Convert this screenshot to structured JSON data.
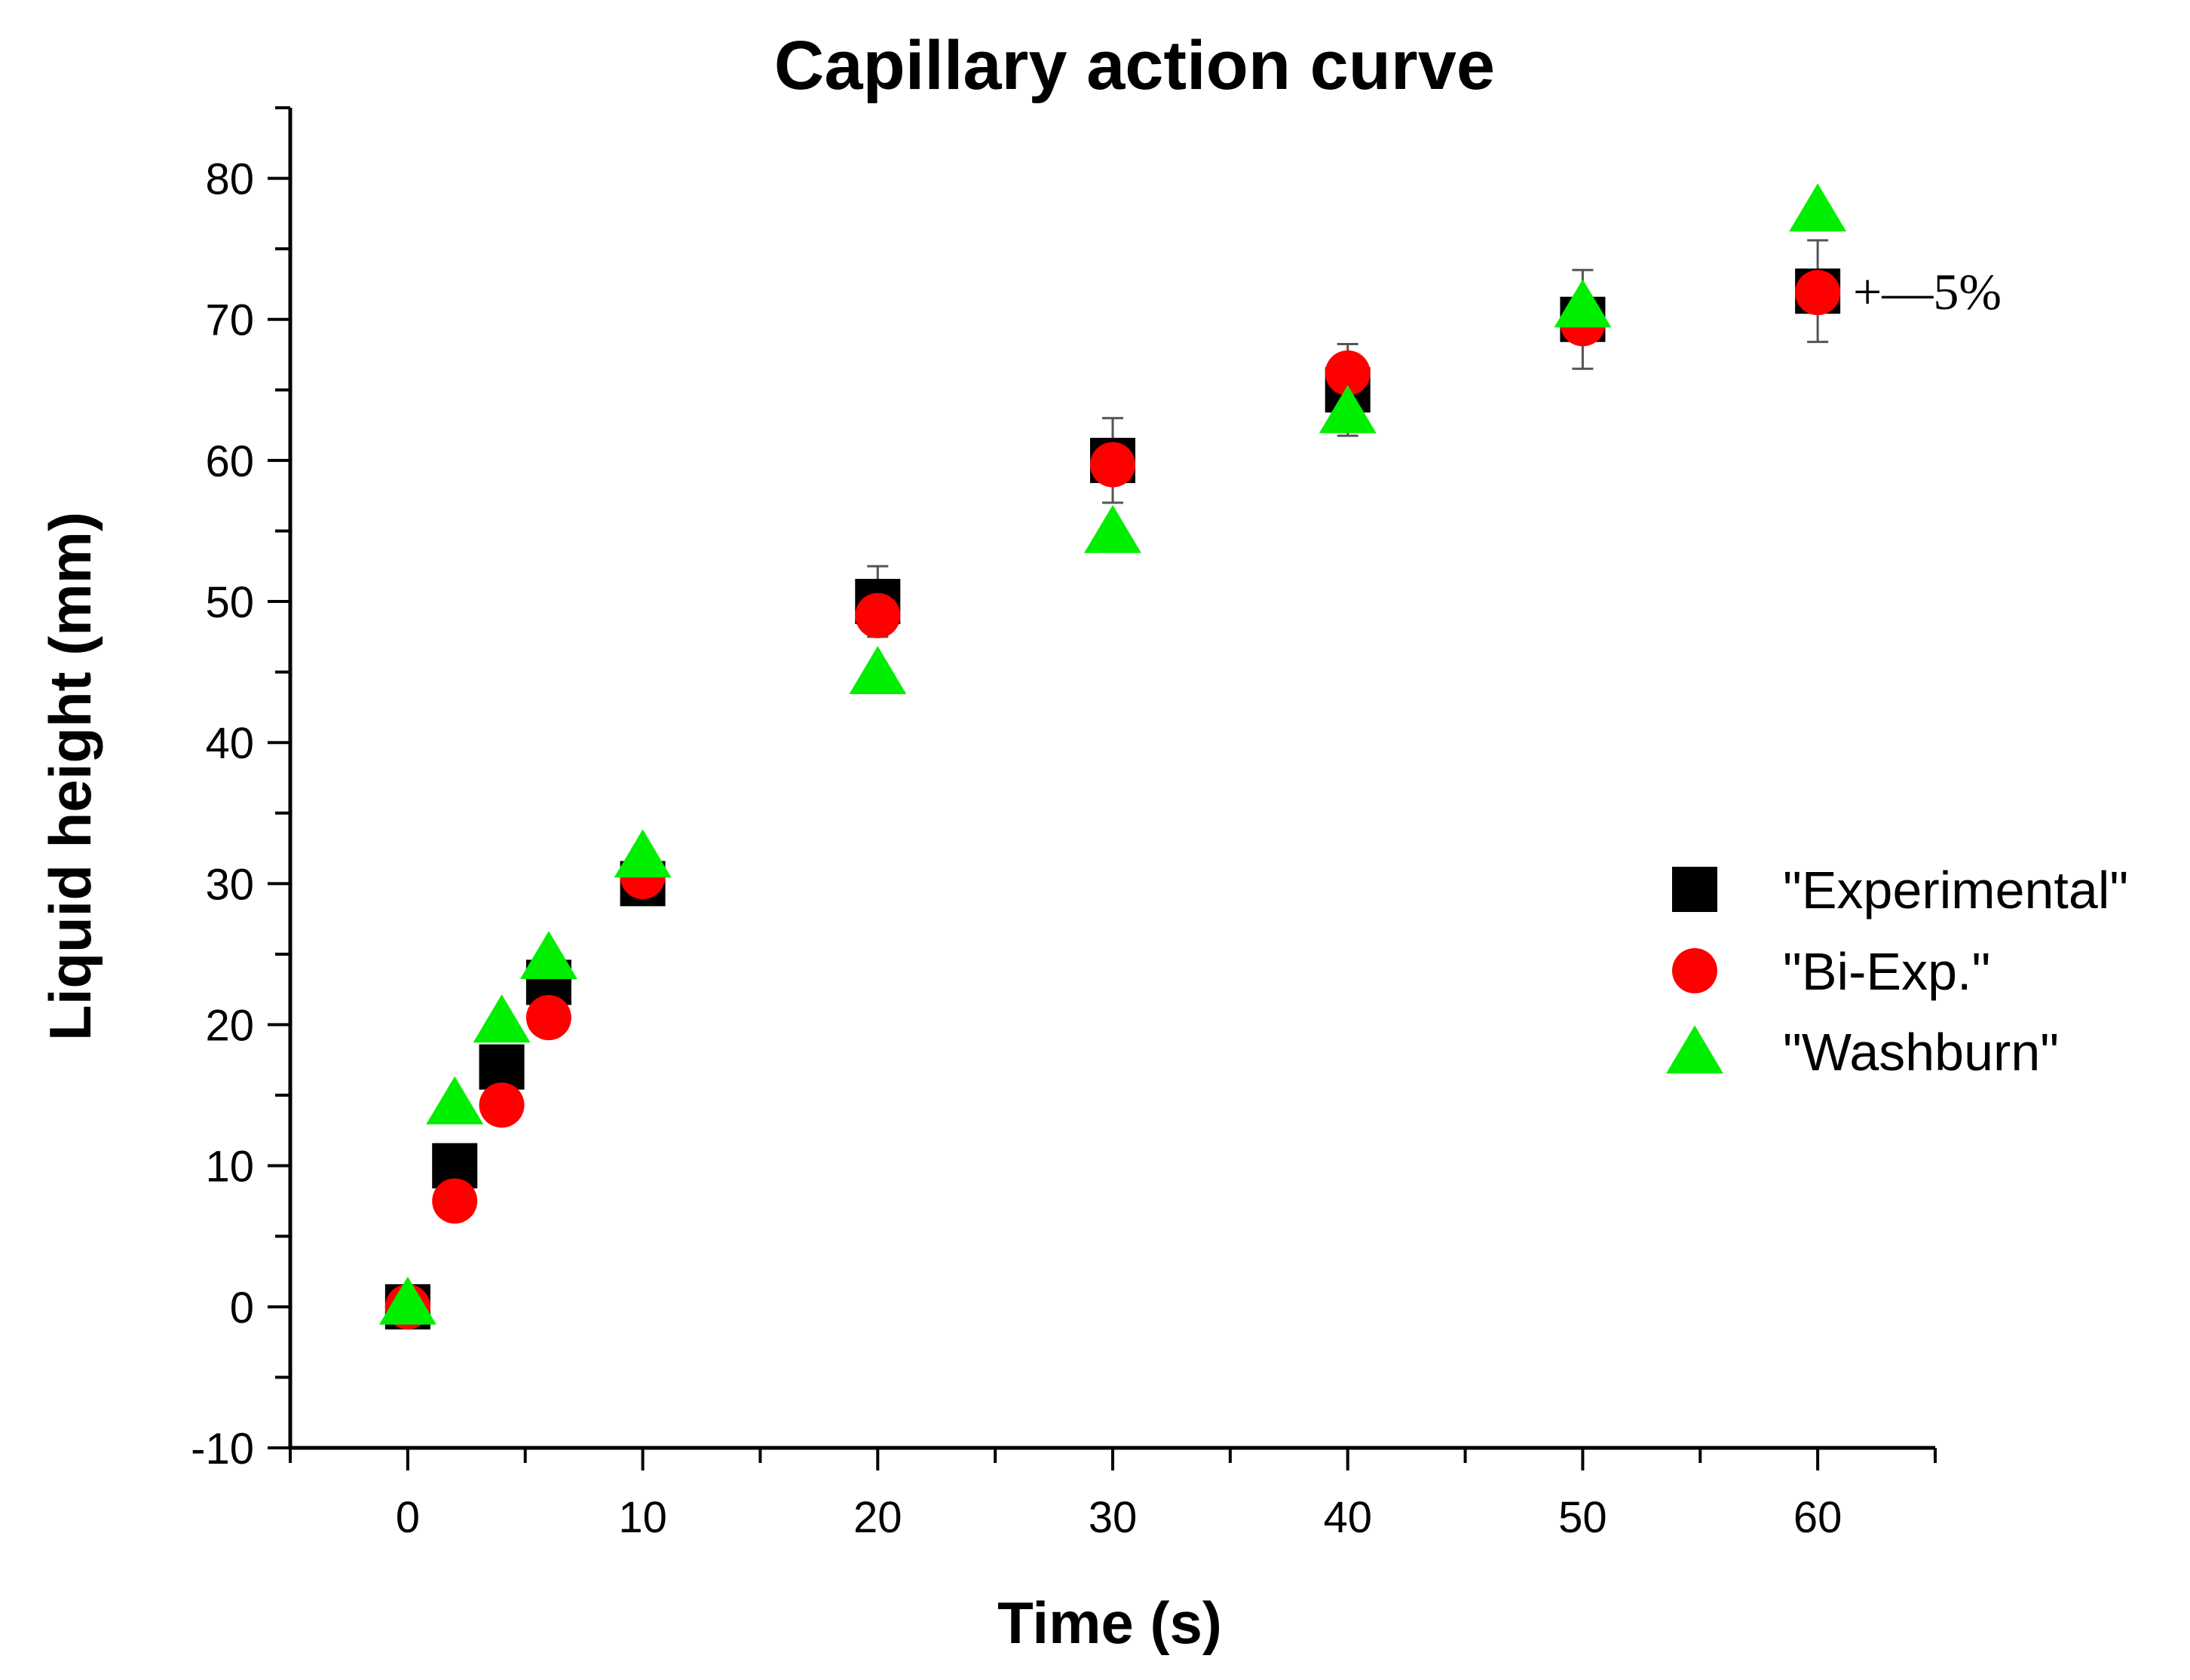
{
  "chart_data": {
    "type": "scatter",
    "title": "Capillary action curve",
    "xlabel": "Time (s)",
    "ylabel": "Liquid height (mm)",
    "xlim": [
      -5,
      65
    ],
    "ylim": [
      -10,
      85
    ],
    "xticks": [
      0,
      10,
      20,
      30,
      40,
      50,
      60
    ],
    "yticks": [
      -10,
      0,
      10,
      20,
      30,
      40,
      50,
      60,
      70,
      80
    ],
    "grid": false,
    "legend_position": "right",
    "series": [
      {
        "name": "\"Experimental\"",
        "marker": "square",
        "color": "#000000",
        "x": [
          0,
          2,
          4,
          6,
          10,
          20,
          30,
          40,
          50,
          60
        ],
        "y": [
          0,
          10,
          17,
          23,
          30,
          50,
          60,
          65,
          70,
          72
        ],
        "error_percent": 5
      },
      {
        "name": "\"Bi-Exp.\"",
        "marker": "circle",
        "color": "#ff0000",
        "x": [
          0,
          2,
          4,
          6,
          10,
          20,
          30,
          40,
          50,
          60
        ],
        "y": [
          0,
          7.5,
          14.3,
          20.5,
          30.5,
          49,
          59.7,
          66.2,
          69.7,
          71.9
        ]
      },
      {
        "name": "\"Washburn\"",
        "marker": "triangle",
        "color": "#00ee00",
        "x": [
          0,
          2,
          4,
          6,
          10,
          20,
          30,
          40,
          50,
          60
        ],
        "y": [
          0.3,
          14.5,
          20.3,
          24.8,
          32,
          45,
          55,
          63.5,
          71,
          77.8
        ]
      }
    ],
    "annotation": "+—5%"
  }
}
